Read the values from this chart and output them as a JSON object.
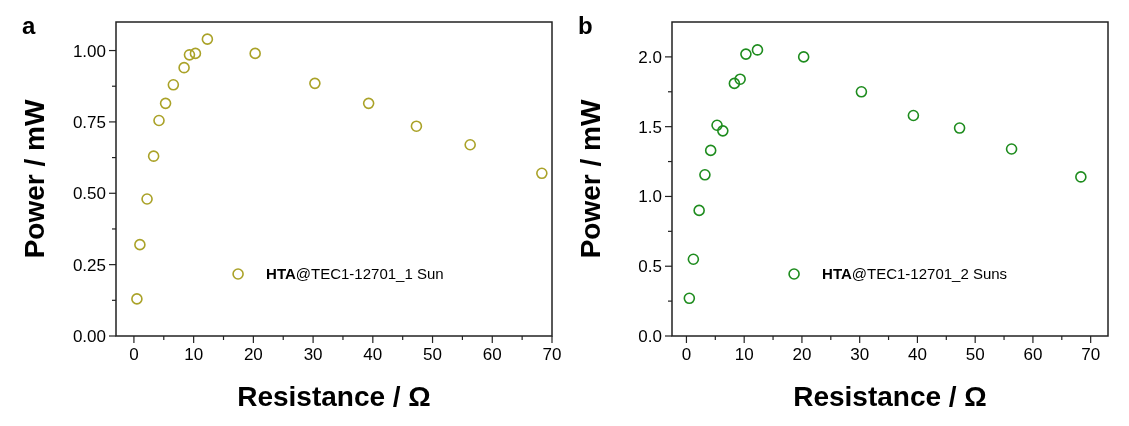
{
  "chart_data": [
    {
      "type": "scatter",
      "title": "a",
      "xlabel": "Resistance / Ω",
      "ylabel": "Power / mW",
      "xlim": [
        -3,
        70
      ],
      "ylim": [
        0,
        1.1
      ],
      "xticks": [
        0,
        {
          "value": 5,
          "label": null
        },
        10,
        {
          "value": 15,
          "label": null
        },
        20,
        {
          "value": 25,
          "label": null
        },
        30,
        {
          "value": 35,
          "label": null
        },
        40,
        {
          "value": 45,
          "label": null
        },
        50,
        {
          "value": 55,
          "label": null
        },
        60,
        {
          "value": 65,
          "label": null
        },
        70
      ],
      "yticks": [
        {
          "value": 0,
          "label": "0.00"
        },
        {
          "value": 0.125,
          "label": null
        },
        0.25,
        {
          "value": 0.375,
          "label": null
        },
        {
          "value": 0.5,
          "label": "0.50"
        },
        {
          "value": 0.625,
          "label": null
        },
        0.75,
        {
          "value": 0.875,
          "label": null
        },
        {
          "value": 1,
          "label": "1.00"
        }
      ],
      "marker": "circle",
      "legend": "bottom",
      "grid": false,
      "series": [
        {
          "name": "HTA@TEC1-12701_1 Sun",
          "color": "#aaa228",
          "x": [
            0.5,
            1,
            2.2,
            3.3,
            4.2,
            5.3,
            6.6,
            8.4,
            9.3,
            10.3,
            12.3,
            20.3,
            30.3,
            39.3,
            47.3,
            56.3,
            68.3
          ],
          "values": [
            0.13,
            0.32,
            0.48,
            0.63,
            0.755,
            0.815,
            0.88,
            0.94,
            0.985,
            0.99,
            1.04,
            0.99,
            0.885,
            0.815,
            0.735,
            0.67,
            0.57
          ]
        }
      ]
    },
    {
      "type": "scatter",
      "title": "b",
      "xlabel": "Resistance / Ω",
      "ylabel": "Power / mW",
      "xlim": [
        -2.5,
        73
      ],
      "ylim": [
        0,
        2.25
      ],
      "xticks": [
        0,
        {
          "value": 5,
          "label": null
        },
        10,
        {
          "value": 15,
          "label": null
        },
        20,
        {
          "value": 25,
          "label": null
        },
        30,
        {
          "value": 35,
          "label": null
        },
        40,
        {
          "value": 45,
          "label": null
        },
        50,
        {
          "value": 55,
          "label": null
        },
        60,
        {
          "value": 65,
          "label": null
        },
        70
      ],
      "yticks": [
        {
          "value": 0,
          "label": "0.0"
        },
        {
          "value": 0.25,
          "label": null
        },
        0.5,
        {
          "value": 0.75,
          "label": null
        },
        {
          "value": 1,
          "label": "1.0"
        },
        {
          "value": 1.25,
          "label": null
        },
        1.5,
        {
          "value": 1.75,
          "label": null
        },
        {
          "value": 2,
          "label": "2.0"
        }
      ],
      "marker": "circle",
      "legend": "bottom",
      "grid": false,
      "series": [
        {
          "name": "HTA@TEC1-12701_2 Suns",
          "color": "#1e8c1e",
          "x": [
            0.5,
            1.2,
            2.2,
            3.2,
            4.2,
            5.3,
            6.3,
            8.3,
            9.3,
            10.3,
            12.3,
            20.3,
            30.3,
            39.3,
            47.3,
            56.3,
            68.3
          ],
          "values": [
            0.27,
            0.55,
            0.9,
            1.155,
            1.33,
            1.51,
            1.47,
            1.81,
            1.84,
            2.02,
            2.05,
            2.0,
            1.75,
            1.58,
            1.49,
            1.34,
            1.14
          ]
        }
      ]
    }
  ]
}
